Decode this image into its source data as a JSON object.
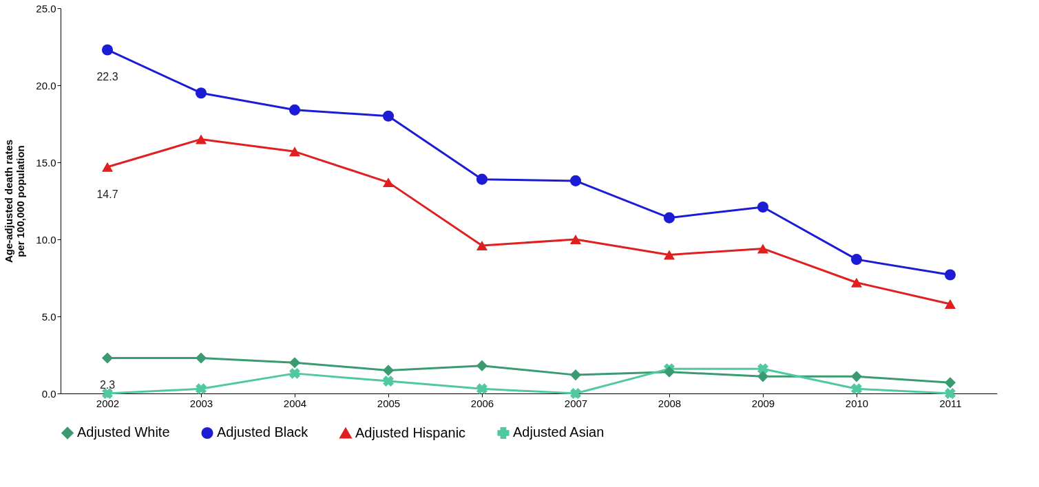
{
  "chart_data": {
    "type": "line",
    "ylabel": "Age-adjusted death rates\nper 100,000 population",
    "categories": [
      "2002",
      "2003",
      "2004",
      "2005",
      "2006",
      "2007",
      "2008",
      "2009",
      "2010",
      "2011"
    ],
    "ylim": [
      0,
      25
    ],
    "yticks": [
      {
        "value": 0,
        "label": "0.0"
      },
      {
        "value": 5,
        "label": "5.0"
      },
      {
        "value": 10,
        "label": "10.0"
      },
      {
        "value": 15,
        "label": "15.0"
      },
      {
        "value": 20,
        "label": "20.0"
      },
      {
        "value": 25,
        "label": "25.0"
      }
    ],
    "grid": false,
    "legend": "bottom",
    "series": [
      {
        "name": "Adjusted White",
        "color": "#3a9a70",
        "marker": "diamond",
        "values": [
          2.3,
          2.3,
          2.0,
          1.5,
          1.8,
          1.2,
          1.4,
          1.1,
          1.1,
          0.7
        ],
        "value_labels": [
          "2.3",
          null,
          null,
          null,
          null,
          null,
          null,
          null,
          null,
          null
        ]
      },
      {
        "name": "Adjusted Black",
        "color": "#1c1cd6",
        "marker": "circle",
        "values": [
          22.3,
          19.5,
          18.4,
          18.0,
          13.9,
          13.8,
          11.4,
          12.1,
          8.7,
          7.7
        ],
        "value_labels": [
          "22.3",
          null,
          null,
          null,
          null,
          null,
          null,
          null,
          null,
          null
        ]
      },
      {
        "name": "Adjusted Hispanic",
        "color": "#e02020",
        "marker": "triangle",
        "values": [
          14.7,
          16.5,
          15.7,
          13.7,
          9.6,
          10.0,
          9.0,
          9.4,
          7.2,
          5.8
        ],
        "value_labels": [
          "14.7",
          null,
          null,
          null,
          null,
          null,
          null,
          null,
          null,
          null
        ]
      },
      {
        "name": "Adjusted Asian",
        "color": "#50c8a0",
        "marker": "cross",
        "values": [
          0.0,
          0.3,
          1.3,
          0.8,
          0.3,
          0.0,
          1.6,
          1.6,
          0.3,
          0.0
        ]
      }
    ]
  }
}
